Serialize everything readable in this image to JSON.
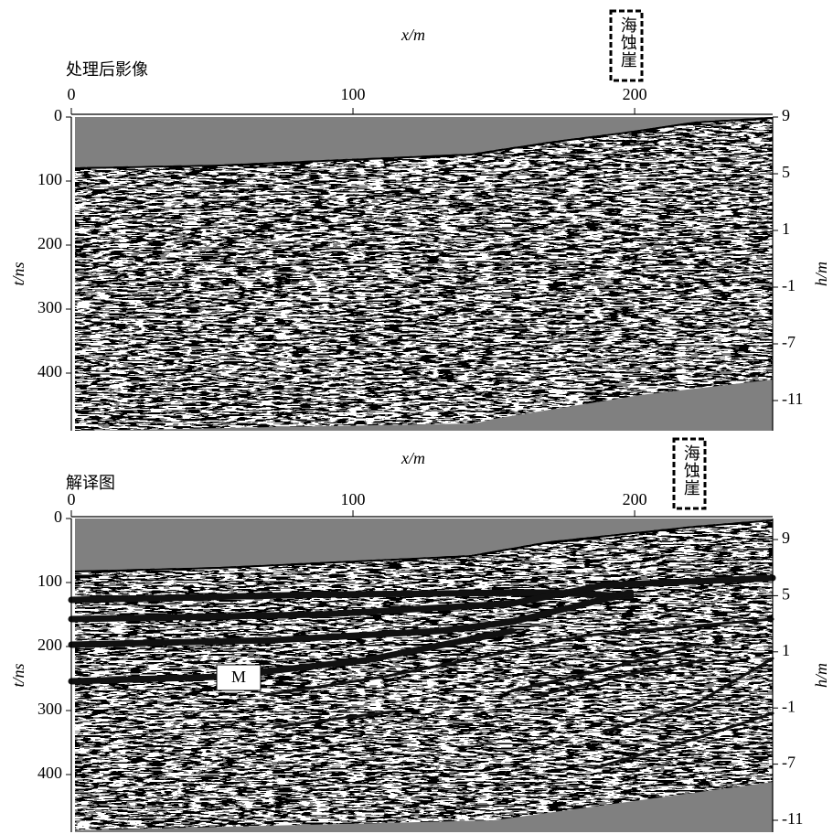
{
  "chart_data": [
    {
      "type": "radargram",
      "title": "处理后影像",
      "x_label": "x/m",
      "y_label": "t/ns",
      "y2_label": "h/m",
      "xlim": [
        0,
        249
      ],
      "xticks": [
        0,
        100,
        200
      ],
      "ylim": [
        0,
        490
      ],
      "yticks": [
        0,
        100,
        200,
        300,
        400
      ],
      "y2ticks": [
        9,
        5,
        1,
        -1,
        -7,
        -11
      ],
      "annotations": [
        "海蚀崖"
      ]
    },
    {
      "type": "radargram",
      "title": "解译图",
      "x_label": "x/m",
      "y_label": "t/ns",
      "y2_label": "h/m",
      "xlim": [
        0,
        249
      ],
      "xticks": [
        0,
        100,
        200
      ],
      "ylim": [
        0,
        490
      ],
      "yticks": [
        0,
        100,
        200,
        300,
        400
      ],
      "y2ticks": [
        9,
        5,
        1,
        -1,
        -7,
        -11
      ],
      "annotations": [
        "海蚀崖",
        "M"
      ]
    }
  ]
}
